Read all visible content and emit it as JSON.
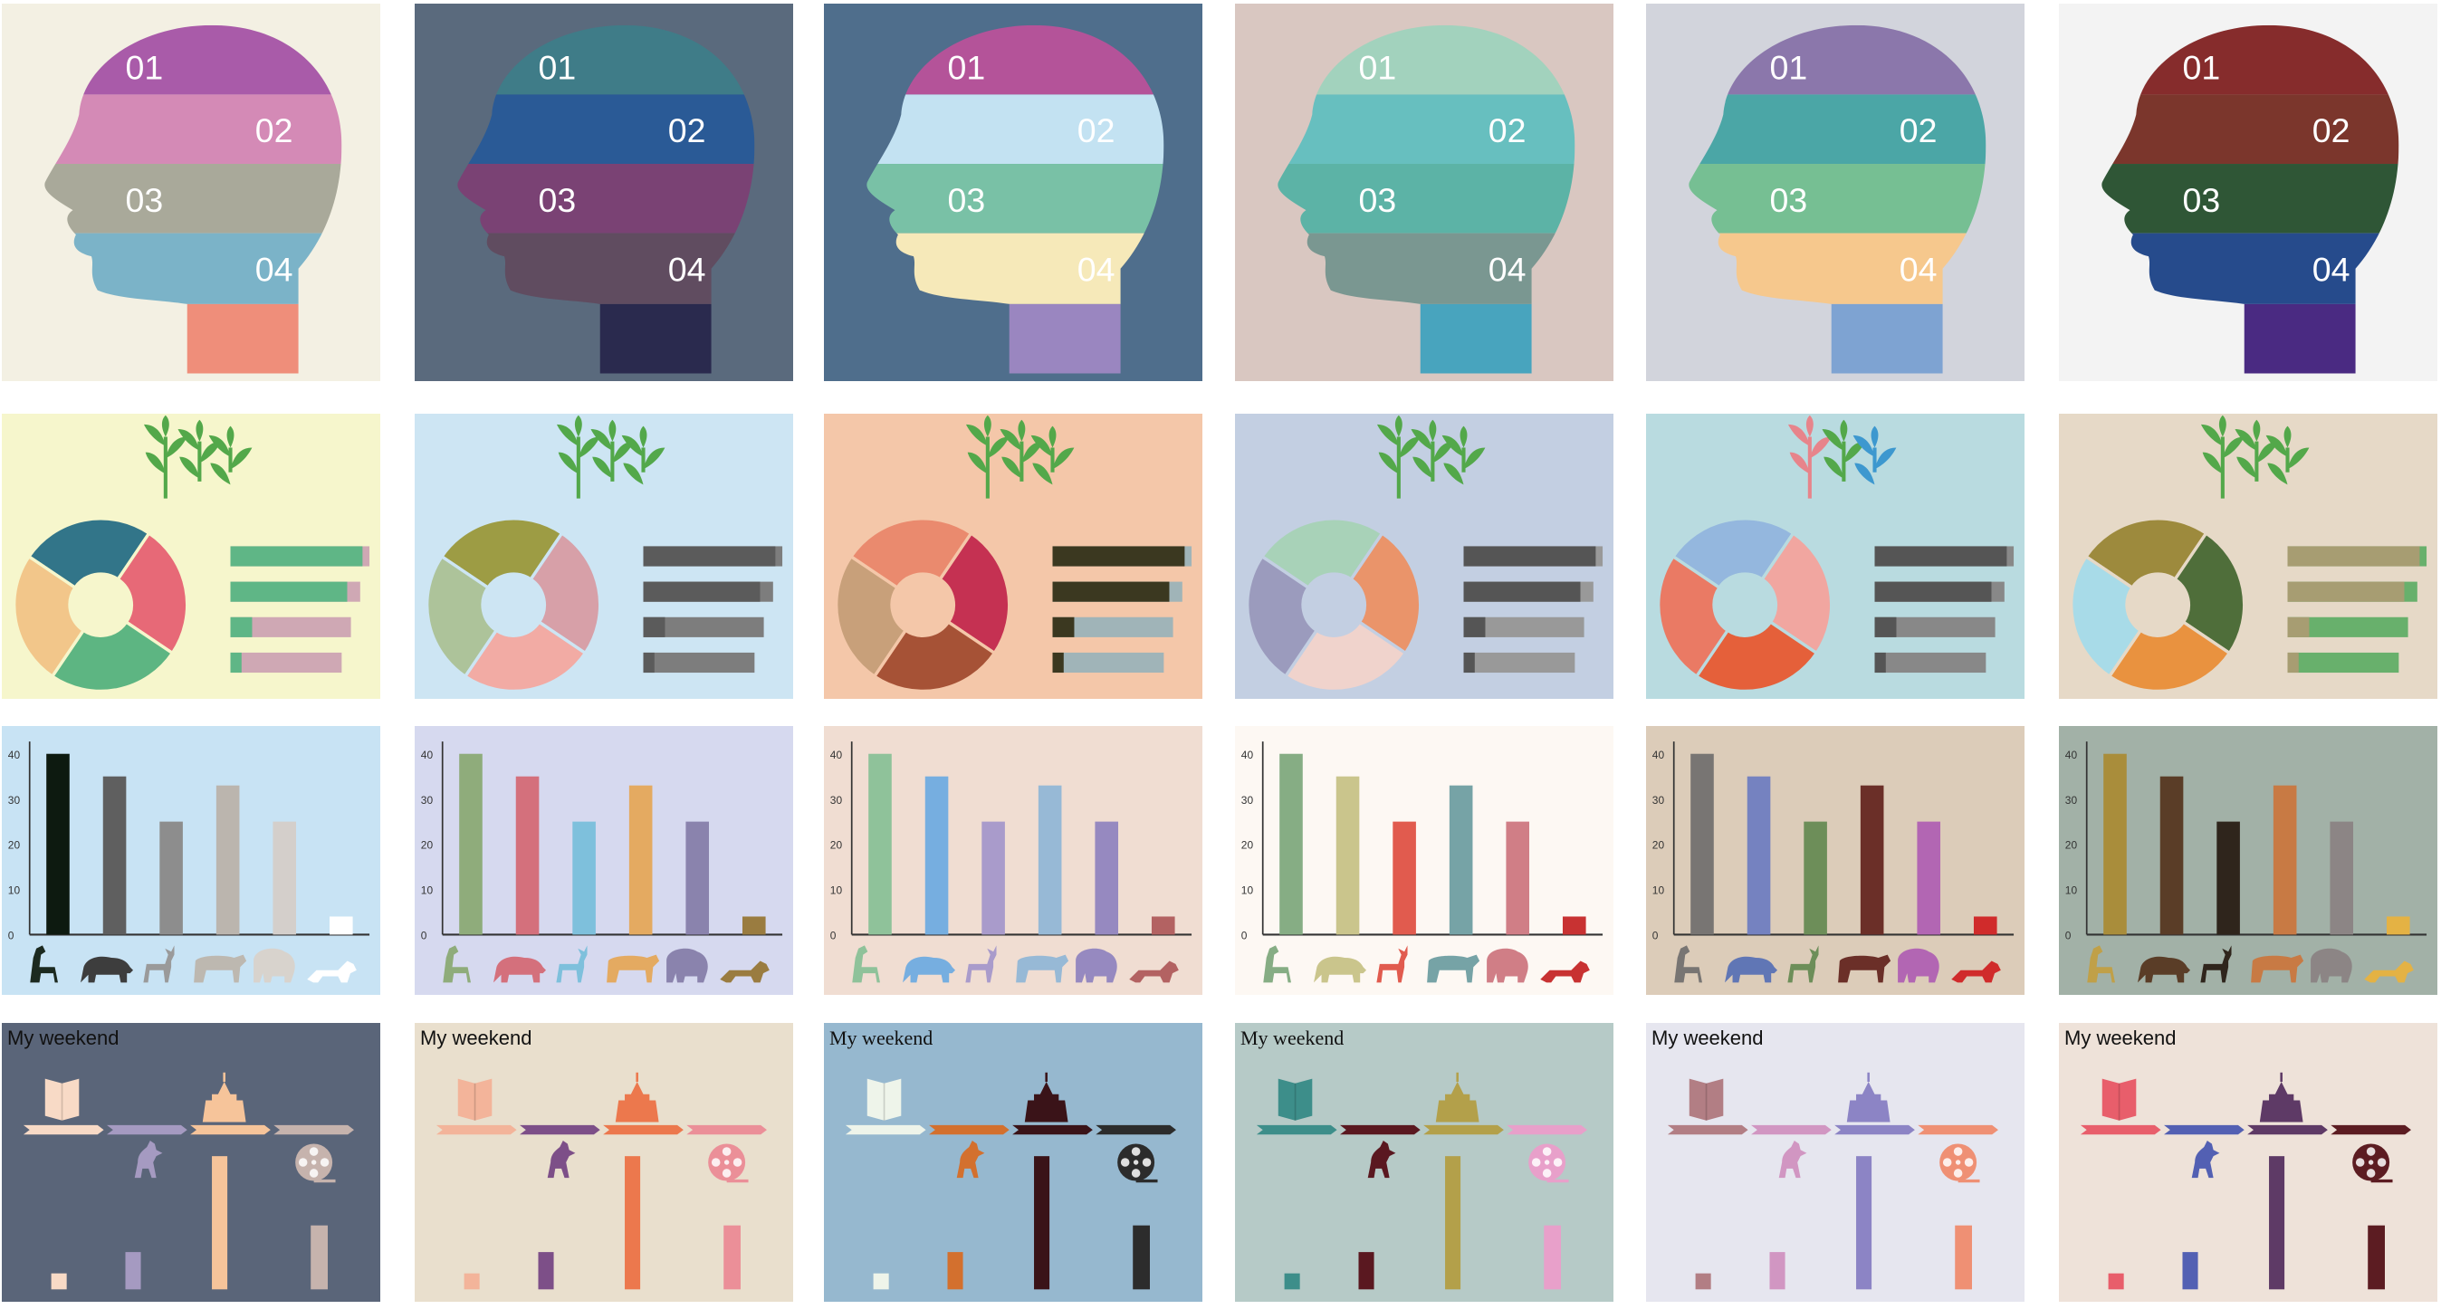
{
  "head_labels": [
    "01",
    "02",
    "03",
    "04"
  ],
  "heads": [
    {
      "bg": "#f3f0e3",
      "bands": [
        "#a95ba9",
        "#d48ab6",
        "#a9a99a",
        "#7bb3c8",
        "#ef8e7a"
      ]
    },
    {
      "bg": "#5a6a7d",
      "bands": [
        "#3f7c88",
        "#2a5a96",
        "#7a4274",
        "#604c60",
        "#2a2a4e"
      ]
    },
    {
      "bg": "#4f6e8c",
      "bands": [
        "#b45399",
        "#c3e2f2",
        "#79c1a6",
        "#f6e9b9",
        "#9a86c0"
      ]
    },
    {
      "bg": "#d9c7c1",
      "bands": [
        "#a2d2bd",
        "#67bfbf",
        "#5cb3a6",
        "#7a9791",
        "#48a4be"
      ]
    },
    {
      "bg": "#d2d4dc",
      "bands": [
        "#8b77ab",
        "#4ba6a6",
        "#76bf93",
        "#f6c88d",
        "#7ea3d2"
      ]
    },
    {
      "bg": "#f3f3f3",
      "bands": [
        "#862c2c",
        "#7b362c",
        "#2f5636",
        "#264b8c",
        "#4a2a82"
      ]
    }
  ],
  "donuts": [
    {
      "bg": "#f6f6cc",
      "sprout": "#53a84a",
      "sprout2": "#53a84a",
      "sprout3": "#53a84a",
      "ring": [
        "#327589",
        "#e76977",
        "#5db582",
        "#f2c68a"
      ],
      "bar_fill": "#5fb686",
      "bar_track": "#cfa8b4",
      "bar_end": "#bba0aa"
    },
    {
      "bg": "#cde5f3",
      "sprout": "#53a84a",
      "sprout2": "#53a84a",
      "sprout3": "#53a84a",
      "ring": [
        "#9d9c44",
        "#d7a0a8",
        "#f2aba4",
        "#adc39a"
      ],
      "bar_fill": "#5b5b5b",
      "bar_track": "#7d7d7d",
      "bar_end": "#9a9a9a"
    },
    {
      "bg": "#f4c7a9",
      "sprout": "#53a84a",
      "sprout2": "#53a84a",
      "sprout3": "#53a84a",
      "ring": [
        "#ea8a6e",
        "#c53152",
        "#a65236",
        "#c8a07a"
      ],
      "bar_fill": "#3b3820",
      "bar_track": "#a0b4b8",
      "bar_end": "#a0b4b8"
    },
    {
      "bg": "#c3cfe2",
      "sprout": "#53a84a",
      "sprout2": "#53a84a",
      "sprout3": "#53a84a",
      "ring": [
        "#a8d2b8",
        "#ea946a",
        "#f0d3cc",
        "#9b9bbd"
      ],
      "bar_fill": "#555555",
      "bar_track": "#999999",
      "bar_end": "#aaaaaa"
    },
    {
      "bg": "#b9dbe0",
      "sprout": "#e7848b",
      "sprout2": "#53a84a",
      "sprout3": "#3d98cf",
      "ring": [
        "#94b7de",
        "#f1a6a0",
        "#e5603a",
        "#ea7a64"
      ],
      "bar_fill": "#555555",
      "bar_track": "#888888",
      "bar_end": "#999999"
    },
    {
      "bg": "#e6d9c7",
      "sprout": "#53a84a",
      "sprout2": "#53a84a",
      "sprout3": "#53a84a",
      "ring": [
        "#9d8a3d",
        "#4f6e3a",
        "#e9923f",
        "#a8dbe8"
      ],
      "bar_fill": "#a79d72",
      "bar_track": "#68b06c",
      "bar_end": "#68b06c"
    }
  ],
  "donut_bar_fill": [
    0.95,
    0.9,
    0.18,
    0.1
  ],
  "chart_data": [
    {
      "type": "bar",
      "ylim": [
        0,
        40
      ],
      "yticks": [
        "0",
        "10",
        "20",
        "30",
        "40"
      ],
      "values": [
        40,
        35,
        25,
        33,
        25,
        4
      ],
      "bg": "#c8e3f4",
      "colors": [
        "#0d1a10",
        "#5f5f5f",
        "#8d8d8d",
        "#bbb5ae",
        "#d4cfcb",
        "#ffffff"
      ],
      "animal_colors": [
        "#1c2a20",
        "#3d3d3d",
        "#9a9a9a",
        "#bdb8b0",
        "#d8d3cd",
        "#ffffff"
      ]
    },
    {
      "type": "bar",
      "ylim": [
        0,
        40
      ],
      "yticks": [
        "0",
        "10",
        "20",
        "30",
        "40"
      ],
      "values": [
        40,
        35,
        25,
        33,
        25,
        4
      ],
      "bg": "#d6d9ef",
      "colors": [
        "#8fac7b",
        "#d4707c",
        "#7ec0dc",
        "#e4aa61",
        "#8a83ad",
        "#9a7c40"
      ],
      "animal_colors": [
        "#8fac7b",
        "#d4707c",
        "#7ec0dc",
        "#e4aa61",
        "#8a83ad",
        "#9a7c40"
      ]
    },
    {
      "type": "bar",
      "ylim": [
        0,
        40
      ],
      "yticks": [
        "0",
        "10",
        "20",
        "30",
        "40"
      ],
      "values": [
        40,
        35,
        25,
        33,
        25,
        4
      ],
      "bg": "#f0ddd2",
      "colors": [
        "#8fc29a",
        "#76aee0",
        "#a99bcb",
        "#97b9d6",
        "#9689c0",
        "#b36262"
      ],
      "animal_colors": [
        "#8fc29a",
        "#76aee0",
        "#a99bcb",
        "#97b9d6",
        "#9689c0",
        "#b36262"
      ]
    },
    {
      "type": "bar",
      "ylim": [
        0,
        40
      ],
      "yticks": [
        "0",
        "10",
        "20",
        "30",
        "40"
      ],
      "values": [
        40,
        35,
        25,
        33,
        25,
        4
      ],
      "bg": "#fdf8f3",
      "colors": [
        "#86ad84",
        "#cac58c",
        "#e15b4e",
        "#76a3a6",
        "#d07e86",
        "#c83232"
      ],
      "animal_colors": [
        "#86ad84",
        "#cac58c",
        "#e15b4e",
        "#76a3a6",
        "#d07e86",
        "#c83232"
      ]
    },
    {
      "type": "bar",
      "ylim": [
        0,
        40
      ],
      "yticks": [
        "0",
        "10",
        "20",
        "30",
        "40"
      ],
      "values": [
        40,
        35,
        25,
        33,
        25,
        4
      ],
      "bg": "#dcccb9",
      "colors": [
        "#787573",
        "#7582c0",
        "#6d8e59",
        "#6b2f28",
        "#b266b3",
        "#d02b2b"
      ],
      "animal_colors": [
        "#787573",
        "#6076b5",
        "#6d8e59",
        "#6b2f28",
        "#b266b3",
        "#d02b2b"
      ]
    },
    {
      "type": "bar",
      "ylim": [
        0,
        40
      ],
      "yticks": [
        "0",
        "10",
        "20",
        "30",
        "40"
      ],
      "values": [
        40,
        35,
        25,
        33,
        25,
        4
      ],
      "bg": "#a2b1a7",
      "colors": [
        "#a98d3b",
        "#5a3d27",
        "#2f251c",
        "#c87a44",
        "#8c8585",
        "#e4b244"
      ],
      "animal_colors": [
        "#c0a048",
        "#5a3d27",
        "#2f251c",
        "#c87a44",
        "#8c8585",
        "#e4b244"
      ]
    }
  ],
  "weekend_title": "My weekend",
  "weekends": [
    {
      "bg": "#5a6579",
      "serif": false,
      "line": "#f2d3bc",
      "c": [
        "#f8dac6",
        "#a59ac1",
        "#f6c49a",
        "#c6b3ad"
      ],
      "values": [
        0.12,
        0.28,
        1.0,
        0.48
      ]
    },
    {
      "bg": "#e9dfcd",
      "serif": false,
      "line": "#f1b89a",
      "c": [
        "#f3b49a",
        "#7d4f88",
        "#ec784d",
        "#eb8f98"
      ],
      "values": [
        0.12,
        0.28,
        1.0,
        0.48
      ]
    },
    {
      "bg": "#96b8cf",
      "serif": true,
      "line": "#eef4ea",
      "c": [
        "#eef4ea",
        "#d3702e",
        "#3a1318",
        "#2c2c2c"
      ],
      "values": [
        0.12,
        0.28,
        1.0,
        0.48
      ]
    },
    {
      "bg": "#b6cac7",
      "serif": true,
      "line": "#3d8e8a",
      "c": [
        "#3d8e8a",
        "#5a1820",
        "#b3a04a",
        "#e8a0ca"
      ],
      "values": [
        0.12,
        0.28,
        1.0,
        0.48
      ]
    },
    {
      "bg": "#e6e6ef",
      "serif": false,
      "line": "#b2828a",
      "c": [
        "#b27e84",
        "#d196c2",
        "#8c84c5",
        "#ef9074"
      ],
      "values": [
        0.12,
        0.28,
        1.0,
        0.48
      ]
    },
    {
      "bg": "#eee2d9",
      "serif": false,
      "line": "#e8606c",
      "c": [
        "#e85e6b",
        "#5360b3",
        "#5e3a66",
        "#5c1c22"
      ],
      "values": [
        0.12,
        0.28,
        1.0,
        0.48
      ]
    }
  ]
}
